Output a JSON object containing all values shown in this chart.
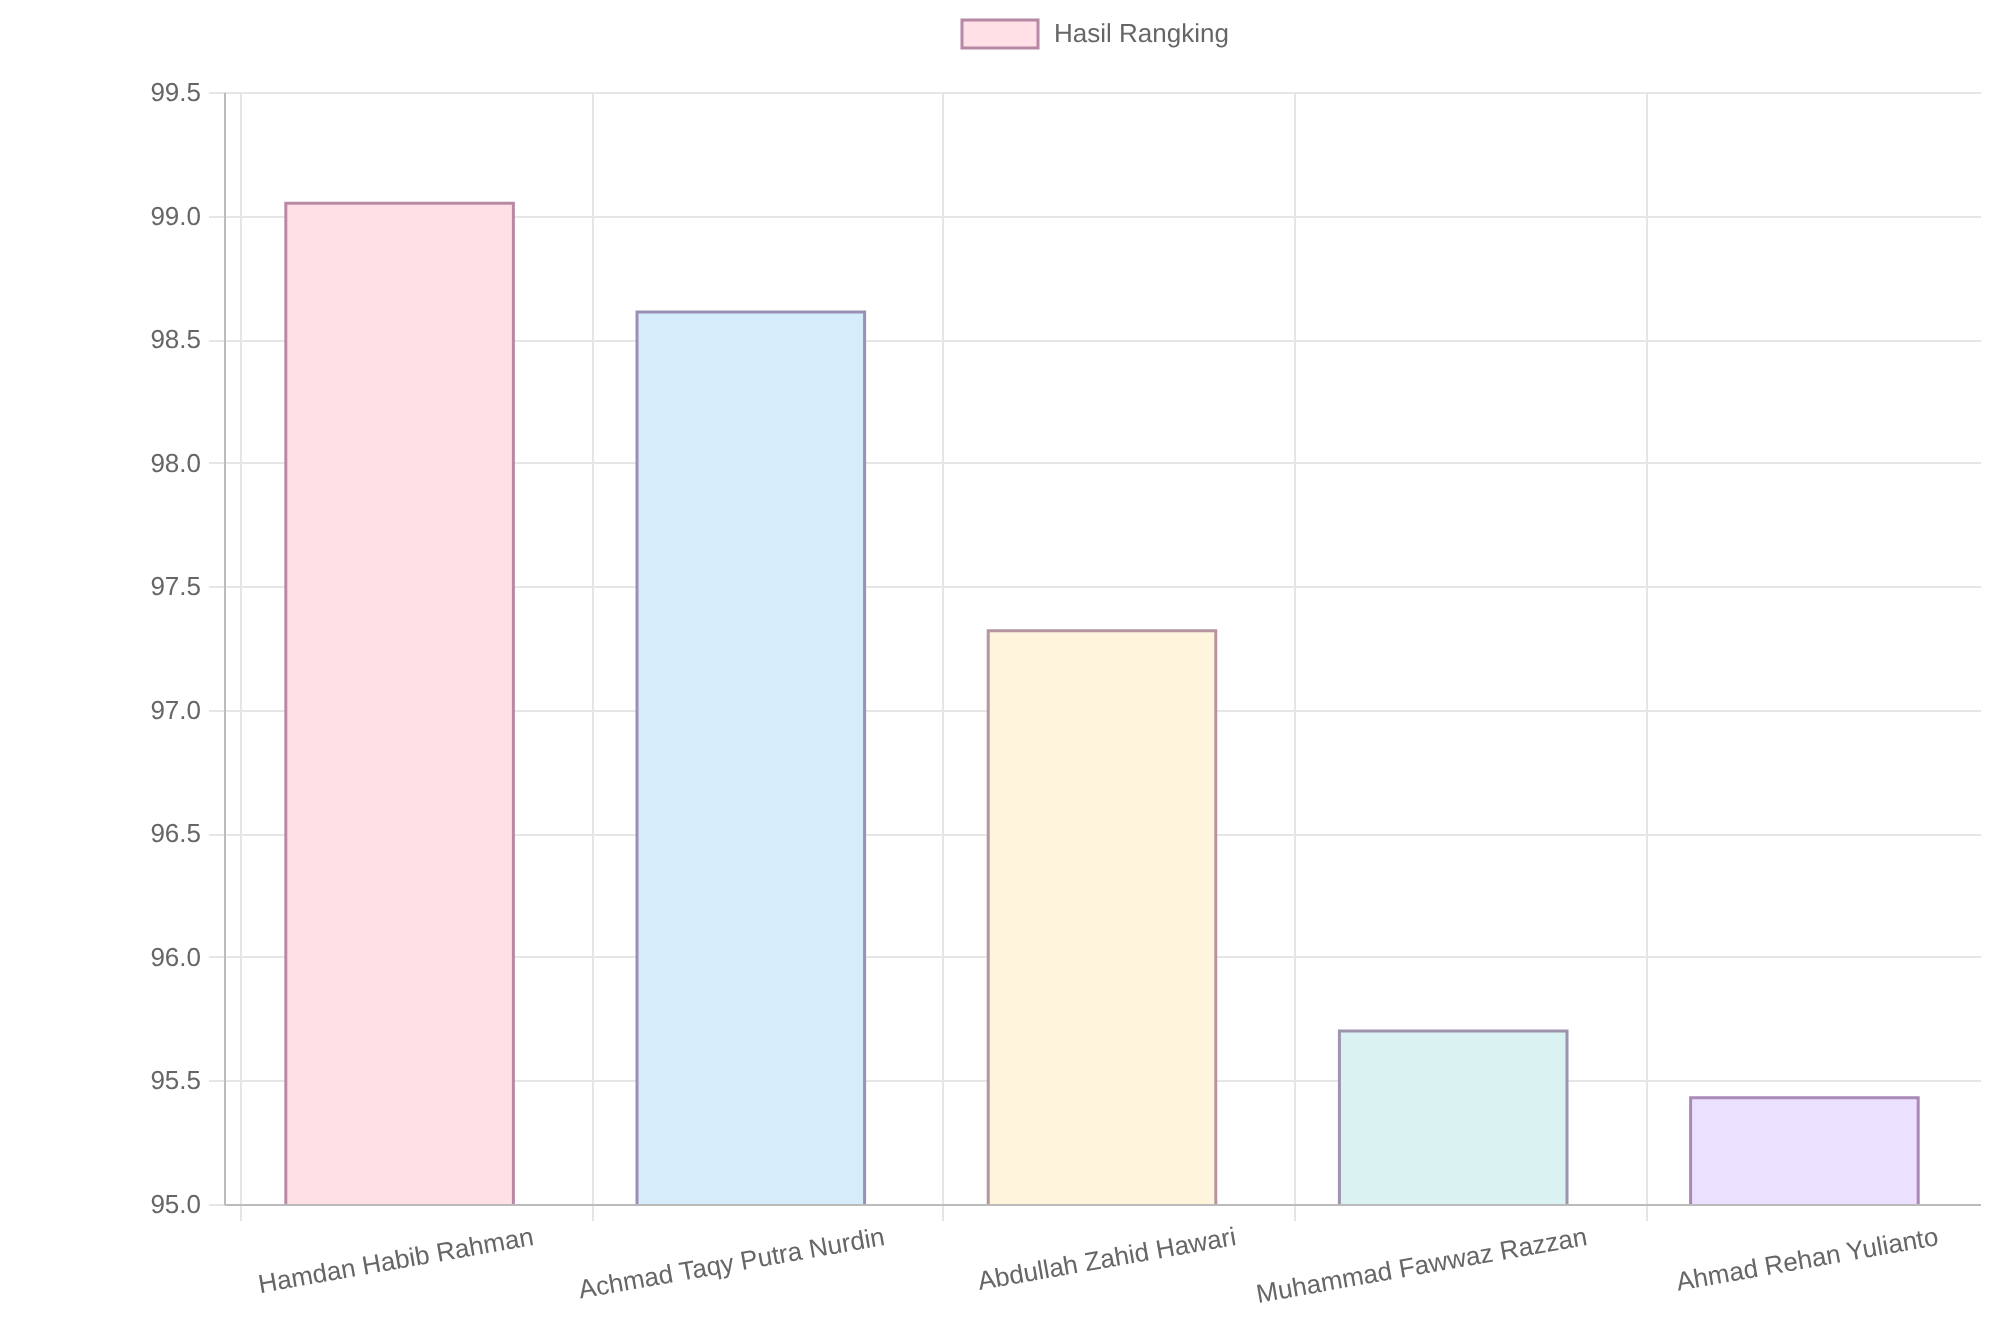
{
  "chart_data": {
    "type": "bar",
    "categories": [
      "Hamdan Habib Rahman",
      "Achmad Taqy Putra Nurdin",
      "Abdullah Zahid Hawari",
      "Muhammad Fawwaz Razzan",
      "Ahmad Rehan Yulianto"
    ],
    "series": [
      {
        "name": "Hasil Rangking",
        "colors": [
          "#ffe0e6",
          "#d7ecfb",
          "#fff5dd",
          "#dbf2f2",
          "#ebe0ff"
        ],
        "values": [
          99.05,
          98.61,
          97.32,
          95.7,
          95.43
        ]
      }
    ],
    "ylim": [
      95.0,
      99.5
    ],
    "yticks": [
      {
        "value": 95,
        "label": "95.0"
      },
      {
        "value": 95.5,
        "label": "95.5"
      },
      {
        "value": 96,
        "label": "96.0"
      },
      {
        "value": 96.5,
        "label": "96.5"
      },
      {
        "value": 97,
        "label": "97.0"
      },
      {
        "value": 97.5,
        "label": "97.5"
      },
      {
        "value": 98,
        "label": "98.0"
      },
      {
        "value": 98.5,
        "label": "98.5"
      },
      {
        "value": 99,
        "label": "99.0"
      },
      {
        "value": 99.5,
        "label": "99.5"
      }
    ],
    "grid": true,
    "legend": "top"
  }
}
